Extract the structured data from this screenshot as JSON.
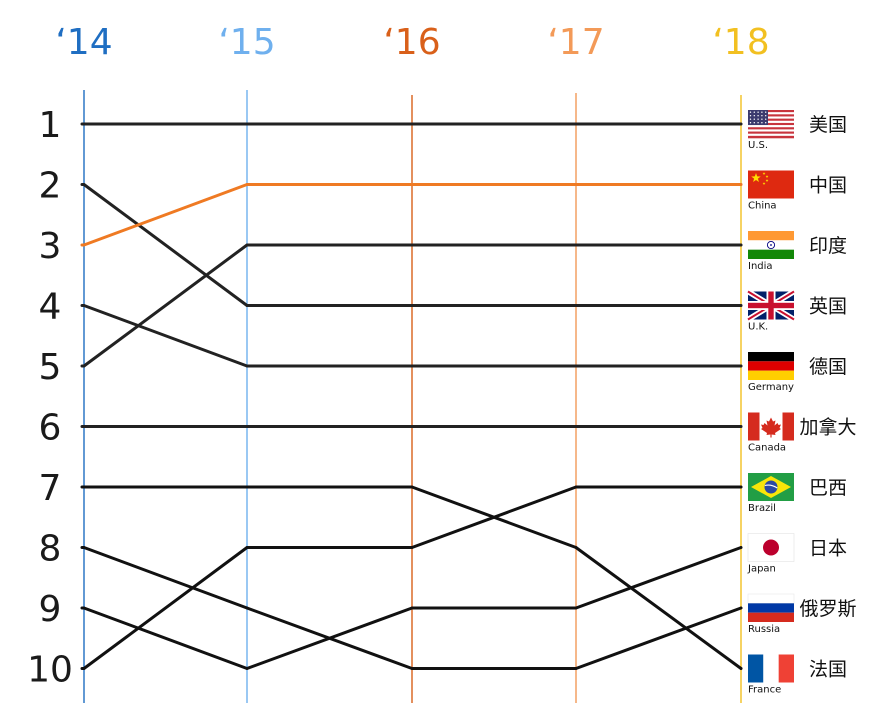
{
  "chart_data": {
    "type": "line",
    "x": [
      "‘14",
      "‘15",
      "‘16",
      "‘17",
      "‘18"
    ],
    "year_colors": [
      "#1f6ec2",
      "#6fb0ee",
      "#d9601a",
      "#f39a58",
      "#f2c021"
    ],
    "ranks": [
      "1",
      "2",
      "3",
      "4",
      "5",
      "6",
      "7",
      "8",
      "9",
      "10"
    ],
    "ylim": [
      1,
      10
    ],
    "y_inverted": true,
    "grid": false,
    "series": [
      {
        "key": "us",
        "label": "美国",
        "caption": "U.S.",
        "flag": "us-flag",
        "color": "#222222",
        "values": [
          1,
          1,
          1,
          1,
          1
        ]
      },
      {
        "key": "china",
        "label": "中国",
        "caption": "China",
        "flag": "china-flag",
        "color": "#ef7a23",
        "values": [
          3,
          2,
          2,
          2,
          2
        ]
      },
      {
        "key": "india",
        "label": "印度",
        "caption": "India",
        "flag": "india-flag",
        "color": "#222222",
        "values": [
          5,
          3,
          3,
          3,
          3
        ]
      },
      {
        "key": "uk",
        "label": "英国",
        "caption": "U.K.",
        "flag": "uk-flag",
        "color": "#222222",
        "values": [
          2,
          4,
          4,
          4,
          4
        ]
      },
      {
        "key": "germany",
        "label": "德国",
        "caption": "Germany",
        "flag": "germany-flag",
        "color": "#222222",
        "values": [
          4,
          5,
          5,
          5,
          5
        ]
      },
      {
        "key": "canada",
        "label": "加拿大",
        "caption": "Canada",
        "flag": "canada-flag",
        "color": "#222222",
        "values": [
          6,
          6,
          6,
          6,
          6
        ]
      },
      {
        "key": "brazil",
        "label": "巴西",
        "caption": "Brazil",
        "flag": "brazil-flag",
        "color": "#111111",
        "values": [
          10,
          8,
          8,
          7,
          7
        ]
      },
      {
        "key": "japan",
        "label": "日本",
        "caption": "Japan",
        "flag": "japan-flag",
        "color": "#111111",
        "values": [
          9,
          10,
          9,
          9,
          8
        ]
      },
      {
        "key": "russia",
        "label": "俄罗斯",
        "caption": "Russia",
        "flag": "russia-flag",
        "color": "#111111",
        "values": [
          8,
          9,
          10,
          10,
          9
        ]
      },
      {
        "key": "france",
        "label": "法国",
        "caption": "France",
        "flag": "france-flag",
        "color": "#111111",
        "values": [
          7,
          7,
          7,
          8,
          10
        ]
      }
    ]
  }
}
